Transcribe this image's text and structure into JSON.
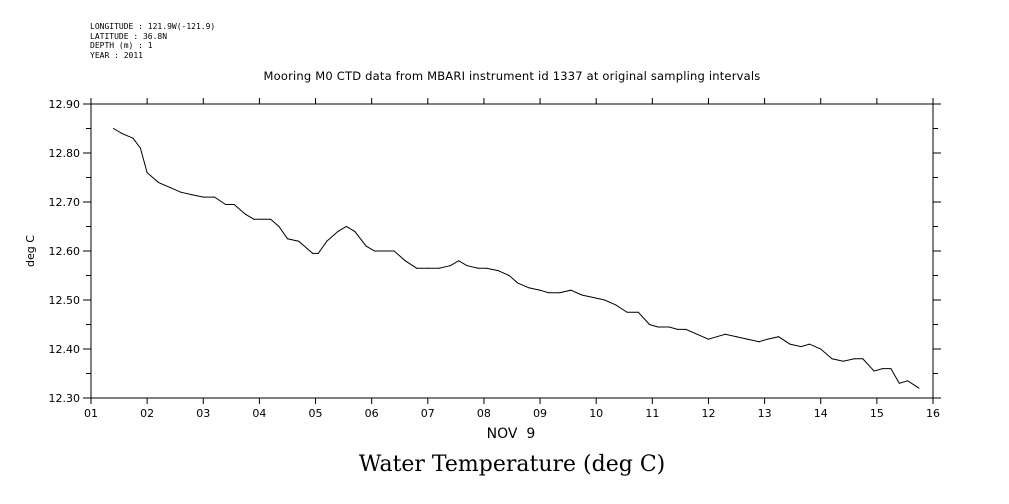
{
  "header": {
    "meta_lines": [
      "LONGITUDE : 121.9W(-121.9)",
      "LATITUDE : 36.8N",
      "DEPTH (m) : 1",
      "YEAR : 2011"
    ],
    "title": "Mooring M0 CTD data from MBARI instrument id 1337 at original sampling intervals"
  },
  "footer": {
    "title": "Water Temperature (deg C)"
  },
  "chart_data": {
    "type": "line",
    "title": "Mooring M0 CTD data from MBARI instrument id 1337 at original sampling intervals",
    "xlabel": "NOV  9",
    "ylabel": "deg C",
    "xlim": [
      1,
      16
    ],
    "ylim": [
      12.3,
      12.9
    ],
    "x_tick_labels": [
      "01",
      "02",
      "03",
      "04",
      "05",
      "06",
      "07",
      "08",
      "09",
      "10",
      "11",
      "12",
      "13",
      "14",
      "15",
      "16"
    ],
    "y_tick_labels": [
      "12.90",
      "12.80",
      "12.70",
      "12.60",
      "12.50",
      "12.40",
      "12.30"
    ],
    "series": [
      {
        "x": [
          1.4,
          1.55,
          1.75,
          1.88,
          2.0,
          2.2,
          2.4,
          2.6,
          2.8,
          3.0,
          3.2,
          3.4,
          3.55,
          3.75,
          3.9,
          4.05,
          4.2,
          4.35,
          4.5,
          4.7,
          4.95,
          5.05,
          5.2,
          5.4,
          5.55,
          5.7,
          5.9,
          6.05,
          6.2,
          6.4,
          6.6,
          6.8,
          7.0,
          7.2,
          7.4,
          7.55,
          7.7,
          7.9,
          8.05,
          8.25,
          8.45,
          8.6,
          8.8,
          9.0,
          9.15,
          9.35,
          9.55,
          9.75,
          9.95,
          10.15,
          10.35,
          10.55,
          10.75,
          10.95,
          11.1,
          11.3,
          11.45,
          11.6,
          11.8,
          12.0,
          12.15,
          12.3,
          12.5,
          12.7,
          12.9,
          13.05,
          13.25,
          13.45,
          13.65,
          13.8,
          14.0,
          14.2,
          14.4,
          14.6,
          14.75,
          14.95,
          15.1,
          15.25,
          15.4,
          15.55,
          15.75
        ],
        "values": [
          12.85,
          12.84,
          12.83,
          12.81,
          12.76,
          12.74,
          12.73,
          12.72,
          12.715,
          12.71,
          12.71,
          12.695,
          12.695,
          12.675,
          12.665,
          12.665,
          12.665,
          12.65,
          12.625,
          12.62,
          12.595,
          12.595,
          12.62,
          12.64,
          12.65,
          12.64,
          12.61,
          12.6,
          12.6,
          12.6,
          12.58,
          12.565,
          12.565,
          12.565,
          12.57,
          12.58,
          12.57,
          12.565,
          12.565,
          12.56,
          12.55,
          12.535,
          12.525,
          12.52,
          12.515,
          12.515,
          12.52,
          12.51,
          12.505,
          12.5,
          12.49,
          12.475,
          12.475,
          12.45,
          12.445,
          12.445,
          12.44,
          12.44,
          12.43,
          12.42,
          12.425,
          12.43,
          12.425,
          12.42,
          12.415,
          12.42,
          12.425,
          12.41,
          12.405,
          12.41,
          12.4,
          12.38,
          12.375,
          12.38,
          12.38,
          12.355,
          12.36,
          12.36,
          12.33,
          12.335,
          12.32
        ]
      }
    ],
    "grid": false,
    "colors": {
      "line": "#000000",
      "axes": "#000000",
      "background": "#ffffff"
    }
  }
}
